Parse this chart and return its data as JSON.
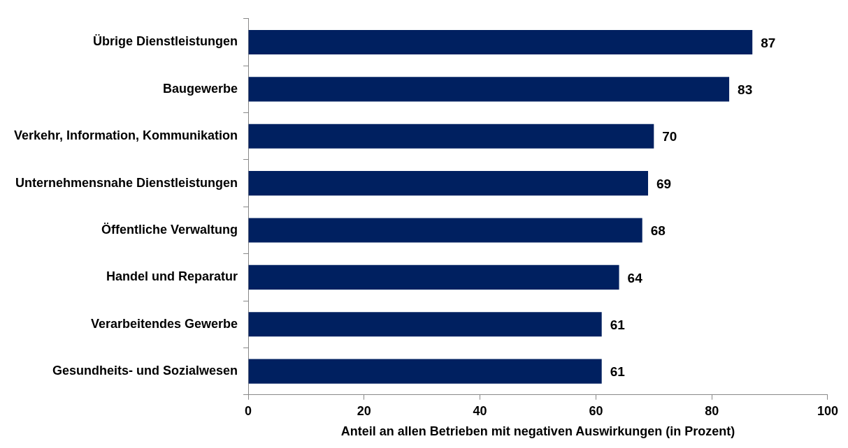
{
  "chart_data": {
    "type": "bar",
    "orientation": "horizontal",
    "xlabel": "Anteil an allen Betrieben mit negativen Auswirkungen (in Prozent)",
    "categories": [
      "Übrige Dienstleistungen",
      "Baugewerbe",
      "Verkehr, Information, Kommunikation",
      "Unternehmensnahe Dienstleistungen",
      "Öffentliche Verwaltung",
      "Handel und Reparatur",
      "Verarbeitendes Gewerbe",
      "Gesundheits- und Sozialwesen"
    ],
    "values": [
      87,
      83,
      70,
      69,
      68,
      64,
      61,
      61
    ],
    "color": "#002060",
    "xlim": [
      0,
      100
    ],
    "xticks": [
      0,
      20,
      40,
      60,
      80,
      100
    ],
    "grid": false,
    "legend": false,
    "data_labels": true
  }
}
